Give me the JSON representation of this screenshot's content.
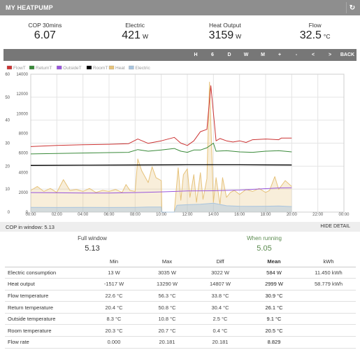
{
  "header": {
    "title": "MY HEATPUMP",
    "refresh_icon": "refresh-icon"
  },
  "stats": [
    {
      "label": "COP 30mins",
      "value": "6.07",
      "unit": ""
    },
    {
      "label": "Electric",
      "value": "421",
      "unit": "W"
    },
    {
      "label": "Heat Output",
      "value": "3159",
      "unit": "W"
    },
    {
      "label": "Flow",
      "value": "32.5",
      "unit": "°C"
    }
  ],
  "toolbar": [
    "H",
    "6",
    "D",
    "W",
    "M",
    "+",
    "-",
    "<",
    ">",
    "BACK"
  ],
  "chart_data": {
    "type": "line",
    "legend": [
      {
        "name": "FlowT",
        "color": "#cc3333"
      },
      {
        "name": "ReturnT",
        "color": "#3a8a3a"
      },
      {
        "name": "OutsideT",
        "color": "#9955dd"
      },
      {
        "name": "RoomT",
        "color": "#000000"
      },
      {
        "name": "Heat",
        "color": "#e6c27a"
      },
      {
        "name": "Electric",
        "color": "#a8c4de"
      }
    ],
    "legend_position": "top-left",
    "x_ticks": [
      "00:00",
      "02:00",
      "04:00",
      "06:00",
      "08:00",
      "10:00",
      "12:00",
      "14:00",
      "16:00",
      "18:00",
      "20:00",
      "22:00",
      "00:00"
    ],
    "y_left_ticks": [
      "0",
      "10",
      "20",
      "30",
      "40",
      "50",
      "60"
    ],
    "y_right_ticks": [
      "0",
      "2000",
      "4000",
      "6000",
      "8000",
      "10000",
      "12000",
      "14000"
    ],
    "y_left_range": [
      0,
      60
    ],
    "y_right_range": [
      0,
      14000
    ],
    "x_range_hours": [
      0,
      24
    ],
    "grid": true,
    "series": [
      {
        "name": "FlowT",
        "axis": "left",
        "x": [
          0,
          2,
          4,
          6,
          7.5,
          8.2,
          9,
          10,
          11,
          11.5,
          12,
          12.5,
          13,
          13.5,
          13.8,
          14.2,
          14.5,
          15,
          15.5,
          16,
          16.5,
          17,
          18,
          19,
          19.2,
          20
        ],
        "y": [
          28.5,
          29,
          29.3,
          29.5,
          29.8,
          31.8,
          29.9,
          31,
          32.5,
          30,
          29,
          31,
          35,
          36,
          55,
          31,
          32,
          31,
          30.5,
          31,
          30.3,
          31.5,
          31.8,
          31.5,
          32.2,
          32.2
        ]
      },
      {
        "name": "ReturnT",
        "axis": "left",
        "x": [
          0,
          2,
          4,
          6,
          7.5,
          8.2,
          9,
          10,
          11,
          11.5,
          12,
          12.5,
          13,
          13.5,
          14,
          14.2,
          15,
          16,
          17,
          18,
          19,
          20
        ],
        "y": [
          25.3,
          25.5,
          25.7,
          25.9,
          26,
          27.2,
          26.5,
          27,
          27.7,
          26.5,
          26,
          27,
          27,
          28,
          30,
          26.5,
          26.7,
          26.2,
          26,
          26.5,
          26.7,
          26.2
        ]
      },
      {
        "name": "RoomT",
        "axis": "left",
        "x": [
          0,
          4,
          8,
          12,
          16,
          20
        ],
        "y": [
          20.3,
          20.4,
          20.5,
          20.6,
          20.6,
          20.5
        ]
      },
      {
        "name": "OutsideT",
        "axis": "left",
        "x": [
          0,
          2,
          4,
          6,
          8,
          10,
          12,
          14,
          16,
          18,
          19,
          20
        ],
        "y": [
          8.5,
          8.4,
          8.3,
          8.3,
          8.5,
          8.8,
          9.2,
          9.3,
          9.6,
          10.2,
          10.5,
          10.6
        ]
      },
      {
        "name": "Heat",
        "axis": "right",
        "fill": true,
        "x": [
          0,
          0.5,
          1,
          1.5,
          2,
          2.5,
          3,
          3.5,
          4,
          4.5,
          5,
          5.5,
          6,
          6.5,
          7,
          7.3,
          7.6,
          8,
          8.2,
          8.5,
          9,
          9.3,
          9.6,
          10,
          10.05,
          11,
          11.3,
          11.5,
          11.7,
          12,
          12.2,
          12.5,
          12.7,
          13,
          13.2,
          13.5,
          13.7,
          14,
          14.2,
          14.5,
          14.7,
          15,
          15.3,
          15.6,
          16,
          16.5,
          17,
          17.5,
          18,
          18.3,
          18.7,
          19,
          19.5,
          20
        ],
        "y": [
          2200,
          2600,
          2100,
          2400,
          2000,
          3300,
          2200,
          2300,
          2100,
          2400,
          2000,
          2200,
          2100,
          2300,
          2000,
          2800,
          2200,
          2100,
          5400,
          4200,
          3000,
          4600,
          3500,
          3200,
          0,
          0,
          4500,
          1200,
          3800,
          4400,
          1500,
          3800,
          1000,
          4000,
          1300,
          3400,
          13200,
          1000,
          3500,
          800,
          3500,
          1500,
          2000,
          2200,
          1800,
          2300,
          2100,
          2400,
          2000,
          2200,
          3600,
          2300,
          3200,
          2600
        ]
      },
      {
        "name": "Electric",
        "axis": "right",
        "fill": true,
        "x": [
          0,
          2,
          4,
          6,
          8,
          9,
          10,
          10.05,
          11,
          11.2,
          12,
          13,
          14,
          15,
          16,
          17,
          18,
          19,
          20
        ],
        "y": [
          480,
          470,
          480,
          470,
          480,
          520,
          520,
          0,
          0,
          700,
          750,
          800,
          900,
          650,
          600,
          580,
          600,
          620,
          560
        ]
      }
    ]
  },
  "cop_window": {
    "label": "COP in window:",
    "value": "5.13",
    "hide_label": "HIDE DETAIL"
  },
  "summary": {
    "full": {
      "label": "Full window",
      "value": "5.13"
    },
    "running": {
      "label": "When running",
      "value": "5.05"
    }
  },
  "table": {
    "headers": [
      "",
      "Min",
      "Max",
      "Diff",
      "Mean",
      "kWh"
    ],
    "rows": [
      [
        "Electric consumption",
        "13 W",
        "3035 W",
        "3022 W",
        "584 W",
        "11.450 kWh"
      ],
      [
        "Heat output",
        "-1517 W",
        "13290 W",
        "14807 W",
        "2999 W",
        "58.779 kWh"
      ],
      [
        "Flow temperature",
        "22.6 °C",
        "56.3 °C",
        "33.8 °C",
        "30.9 °C",
        ""
      ],
      [
        "Return temperature",
        "20.4 °C",
        "50.8 °C",
        "30.4 °C",
        "26.1 °C",
        ""
      ],
      [
        "Outside temperature",
        "8.3 °C",
        "10.8 °C",
        "2.5 °C",
        "9.1 °C",
        ""
      ],
      [
        "Room temperature",
        "20.3 °C",
        "20.7 °C",
        "0.4 °C",
        "20.5 °C",
        ""
      ],
      [
        "Flow rate",
        "0.000",
        "20.181",
        "20.181",
        "8.829",
        ""
      ]
    ]
  }
}
